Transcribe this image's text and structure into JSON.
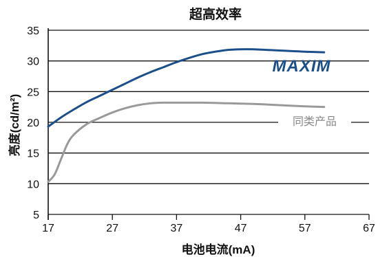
{
  "chart_data": {
    "type": "line",
    "title": "超高效率",
    "xlabel": "电池电流(mA)",
    "ylabel": "亮度(cd/m²)",
    "xlim": [
      17,
      67
    ],
    "ylim": [
      5,
      35
    ],
    "xticks": [
      17,
      27,
      37,
      47,
      57,
      67
    ],
    "yticks": [
      5,
      10,
      15,
      20,
      25,
      30,
      35
    ],
    "grid": "horizontal",
    "series": [
      {
        "name": "MAXIM",
        "color": "#1b4f8a",
        "label_style": "logo",
        "x": [
          17,
          19,
          21,
          23,
          25,
          27,
          29,
          31,
          33,
          35,
          37,
          39,
          41,
          43,
          45,
          47,
          49,
          51,
          53,
          55,
          57,
          60
        ],
        "y": [
          19.3,
          20.8,
          22.1,
          23.3,
          24.3,
          25.3,
          26.3,
          27.3,
          28.2,
          29.0,
          29.8,
          30.5,
          31.1,
          31.5,
          31.8,
          31.9,
          31.9,
          31.8,
          31.7,
          31.6,
          31.5,
          31.4
        ]
      },
      {
        "name": "同类产品",
        "color": "#999999",
        "label_style": "text",
        "x": [
          17,
          18,
          19,
          20,
          21,
          23,
          25,
          27,
          29,
          31,
          33,
          35,
          37,
          41,
          45,
          49,
          53,
          57,
          60
        ],
        "y": [
          10.3,
          11.5,
          14.0,
          16.5,
          18.0,
          19.7,
          20.7,
          21.6,
          22.3,
          22.8,
          23.1,
          23.2,
          23.2,
          23.2,
          23.1,
          23.0,
          22.8,
          22.6,
          22.5
        ]
      }
    ]
  }
}
